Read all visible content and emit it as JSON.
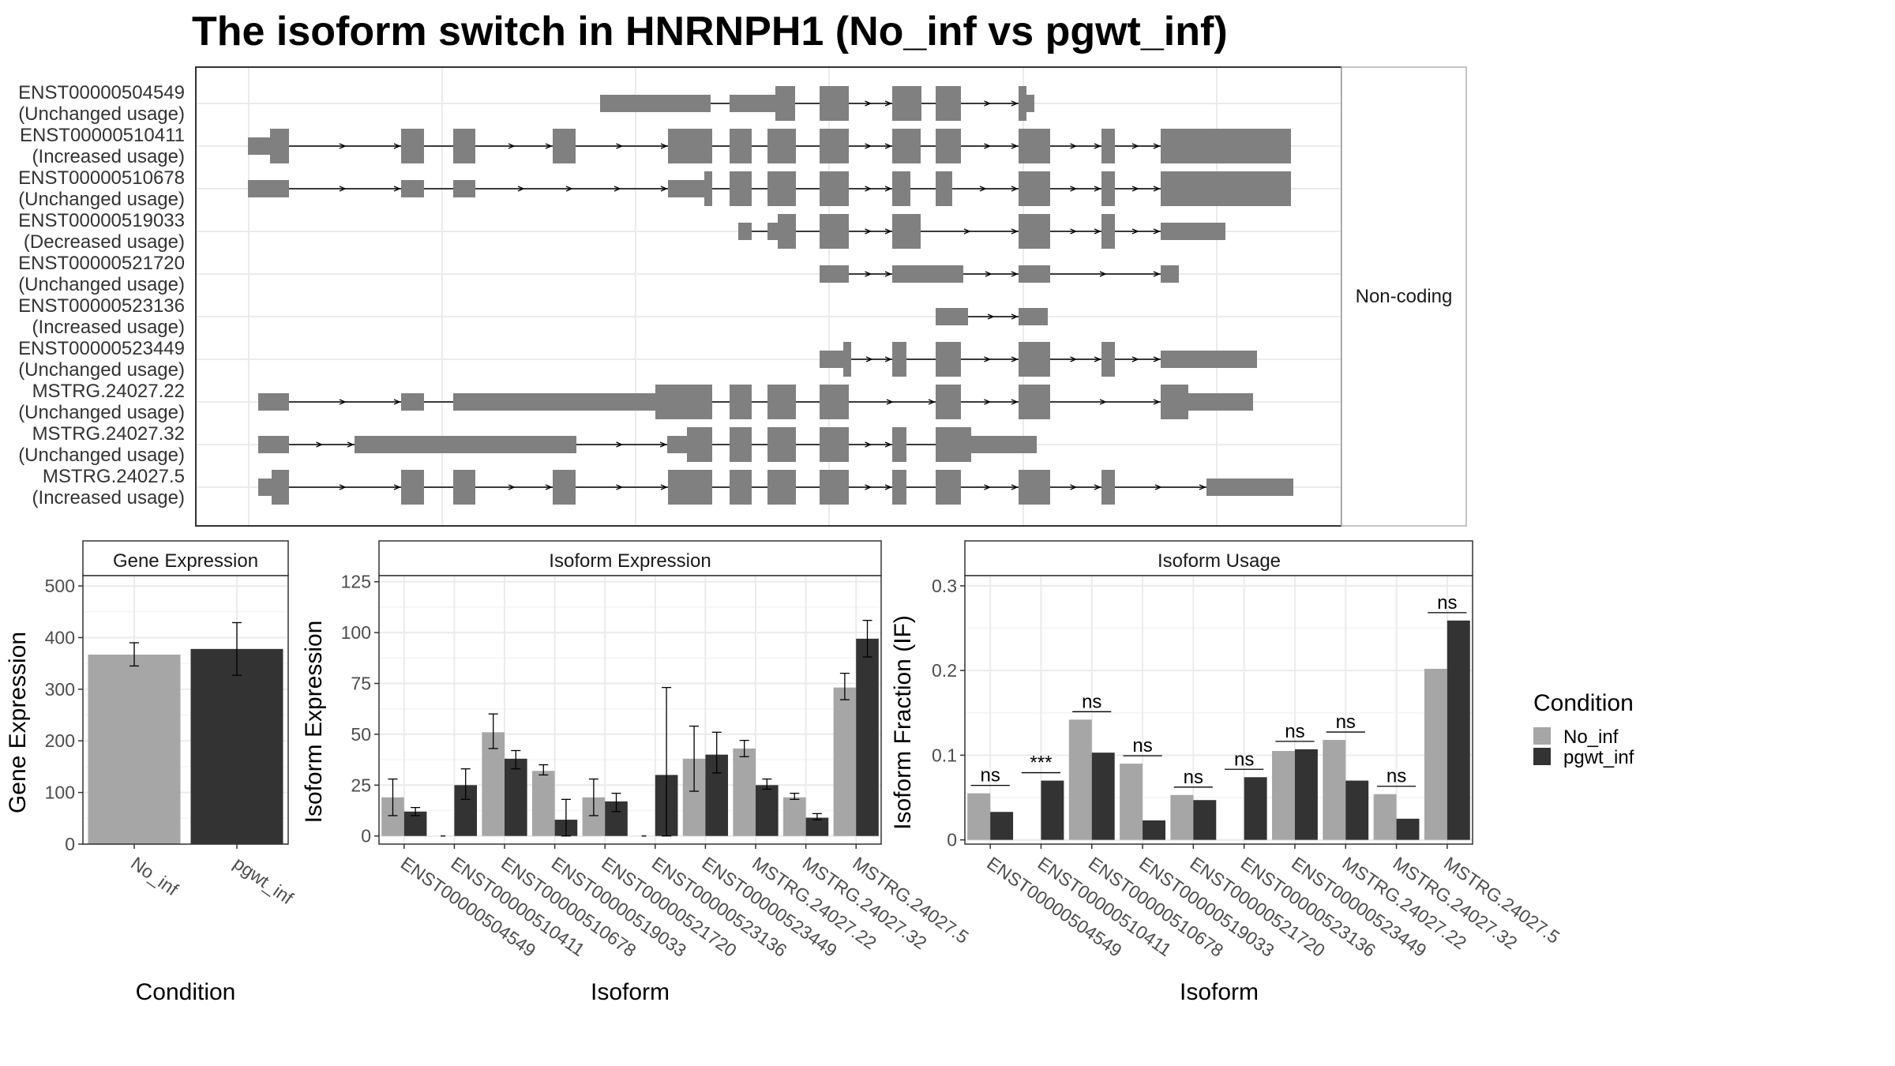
{
  "title": "The isoform switch in HNRNPH1 (No_inf vs pgwt_inf)",
  "colors": {
    "No_inf": "#a6a6a6",
    "pgwt_inf": "#333333",
    "exon": "#808080",
    "grid": "#ebebeb",
    "border": "#333333"
  },
  "structure": {
    "strip_label": "Non-coding",
    "transcripts": [
      {
        "id": "ENST00000504549",
        "usage": "(Unchanged usage)"
      },
      {
        "id": "ENST00000510411",
        "usage": "(Increased usage)"
      },
      {
        "id": "ENST00000510678",
        "usage": "(Unchanged usage)"
      },
      {
        "id": "ENST00000519033",
        "usage": "(Decreased usage)"
      },
      {
        "id": "ENST00000521720",
        "usage": "(Unchanged usage)"
      },
      {
        "id": "ENST00000523136",
        "usage": "(Increased usage)"
      },
      {
        "id": "ENST00000523449",
        "usage": "(Unchanged usage)"
      },
      {
        "id": "MSTRG.24027.22",
        "usage": "(Unchanged usage)"
      },
      {
        "id": "MSTRG.24027.32",
        "usage": "(Unchanged usage)"
      },
      {
        "id": "MSTRG.24027.5",
        "usage": "(Increased usage)"
      }
    ]
  },
  "legend": {
    "title": "Condition",
    "items": [
      "No_inf",
      "pgwt_inf"
    ]
  },
  "chart_data": [
    {
      "type": "bar",
      "panel_title": "Gene Expression",
      "xlabel": "Condition",
      "ylabel": "Gene Expression",
      "categories": [
        "No_inf",
        "pgwt_inf"
      ],
      "values": [
        367,
        378
      ],
      "errors": [
        [
          345,
          390
        ],
        [
          327,
          429
        ]
      ],
      "ylim": [
        0,
        520
      ],
      "yticks": [
        0,
        100,
        200,
        300,
        400,
        500
      ]
    },
    {
      "type": "bar",
      "panel_title": "Isoform Expression",
      "xlabel": "Isoform",
      "ylabel": "Isoform Expression",
      "categories": [
        "ENST00000504549",
        "ENST00000510411",
        "ENST00000510678",
        "ENST00000519033",
        "ENST00000521720",
        "ENST00000523136",
        "ENST00000523449",
        "MSTRG.24027.22",
        "MSTRG.24027.32",
        "MSTRG.24027.5"
      ],
      "series": [
        {
          "name": "No_inf",
          "values": [
            19,
            0,
            51,
            32,
            19,
            0,
            38,
            43,
            19,
            73
          ],
          "errors": [
            [
              10,
              28
            ],
            [
              0,
              0
            ],
            [
              43,
              60
            ],
            [
              30,
              35
            ],
            [
              10,
              28
            ],
            [
              0,
              0
            ],
            [
              22,
              54
            ],
            [
              39,
              47
            ],
            [
              18,
              21
            ],
            [
              67,
              80
            ]
          ]
        },
        {
          "name": "pgwt_inf",
          "values": [
            12,
            25,
            38,
            8,
            17,
            30,
            40,
            25,
            9,
            97
          ],
          "errors": [
            [
              10,
              14
            ],
            [
              18,
              33
            ],
            [
              33,
              42
            ],
            [
              0,
              18
            ],
            [
              12,
              21
            ],
            [
              0,
              73
            ],
            [
              31,
              51
            ],
            [
              23,
              28
            ],
            [
              8,
              11
            ],
            [
              88,
              106
            ]
          ]
        }
      ],
      "ylim": [
        -4,
        128
      ],
      "yticks": [
        0,
        25,
        50,
        75,
        100,
        125
      ]
    },
    {
      "type": "bar",
      "panel_title": "Isoform Usage",
      "xlabel": "Isoform",
      "ylabel": "Isoform Fraction (IF)",
      "categories": [
        "ENST00000504549",
        "ENST00000510411",
        "ENST00000510678",
        "ENST00000519033",
        "ENST00000521720",
        "ENST00000523136",
        "ENST00000523449",
        "MSTRG.24027.22",
        "MSTRG.24027.32",
        "MSTRG.24027.5"
      ],
      "series": [
        {
          "name": "No_inf",
          "values": [
            0.055,
            0.0,
            0.142,
            0.09,
            0.053,
            0.0,
            0.105,
            0.118,
            0.054,
            0.202
          ]
        },
        {
          "name": "pgwt_inf",
          "values": [
            0.033,
            0.07,
            0.103,
            0.023,
            0.047,
            0.074,
            0.107,
            0.07,
            0.025,
            0.259
          ]
        }
      ],
      "significance": [
        "ns",
        "***",
        "ns",
        "ns",
        "ns",
        "ns",
        "ns",
        "ns",
        "ns",
        "ns"
      ],
      "ylim": [
        -0.005,
        0.312
      ],
      "yticks": [
        0.0,
        0.1,
        0.2,
        0.3
      ]
    }
  ]
}
